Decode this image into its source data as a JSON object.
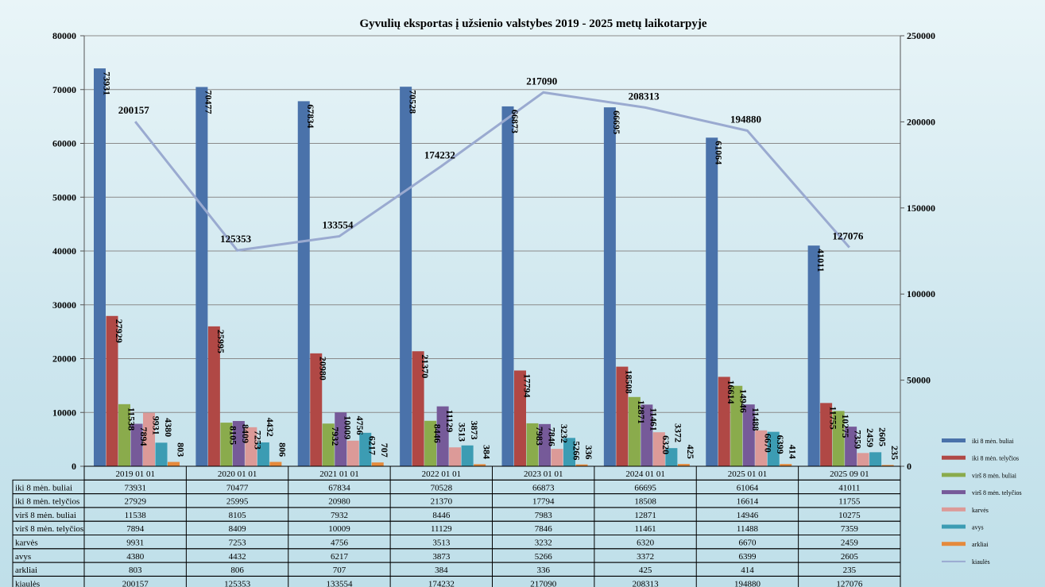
{
  "chart_data": {
    "type": "bar",
    "title": "Gyvulių  eksportas į užsienio  valstybes 2019 - 2025 metų laikotarpyje",
    "categories": [
      "2019 01 01",
      "2020 01 01",
      "2021 01 01",
      "2022 01 01",
      "2023 01 01",
      "2024 01 01",
      "2025 01 01",
      "2025 09 01"
    ],
    "ylim": [
      0,
      80000
    ],
    "y2lim": [
      0,
      250000
    ],
    "yticks": [
      "0",
      "10000",
      "20000",
      "30000",
      "40000",
      "50000",
      "60000",
      "70000",
      "80000"
    ],
    "y2ticks": [
      "0",
      "50000",
      "100000",
      "150000",
      "200000",
      "250000"
    ],
    "grid": true,
    "legend_position": "right",
    "series": [
      {
        "name": "iki 8 mėn. buliai",
        "type": "bar",
        "axis": "left",
        "color": "#4a72aa",
        "values": [
          73931,
          70477,
          67834,
          70528,
          66873,
          66695,
          61064,
          41011
        ]
      },
      {
        "name": "iki 8 mėn. telyčios",
        "type": "bar",
        "axis": "left",
        "color": "#b04845",
        "values": [
          27929,
          25995,
          20980,
          21370,
          17794,
          18508,
          16614,
          11755
        ]
      },
      {
        "name": "virš 8 mėn. buliai",
        "type": "bar",
        "axis": "left",
        "color": "#8aab4c",
        "values": [
          11538,
          8105,
          7932,
          8446,
          7983,
          12871,
          14946,
          10275
        ]
      },
      {
        "name": "virš 8 mėn. telyčios",
        "type": "bar",
        "axis": "left",
        "color": "#765a99",
        "values": [
          7894,
          8409,
          10009,
          11129,
          7846,
          11461,
          11488,
          7359
        ]
      },
      {
        "name": "karvės",
        "type": "bar",
        "axis": "left",
        "color": "#dc9a98",
        "values": [
          9931,
          7253,
          4756,
          3513,
          3232,
          6320,
          6670,
          2459
        ]
      },
      {
        "name": "avys",
        "type": "bar",
        "axis": "left",
        "color": "#3c9cb3",
        "values": [
          4380,
          4432,
          6217,
          3873,
          5266,
          3372,
          6399,
          2605
        ]
      },
      {
        "name": "arkliai",
        "type": "bar",
        "axis": "left",
        "color": "#e58a3c",
        "values": [
          803,
          806,
          707,
          384,
          336,
          425,
          414,
          235
        ]
      },
      {
        "name": "kiaulės",
        "type": "line",
        "axis": "right",
        "color": "#9aaad0",
        "values": [
          200157,
          125353,
          133554,
          174232,
          217090,
          208313,
          194880,
          127076
        ]
      }
    ]
  }
}
